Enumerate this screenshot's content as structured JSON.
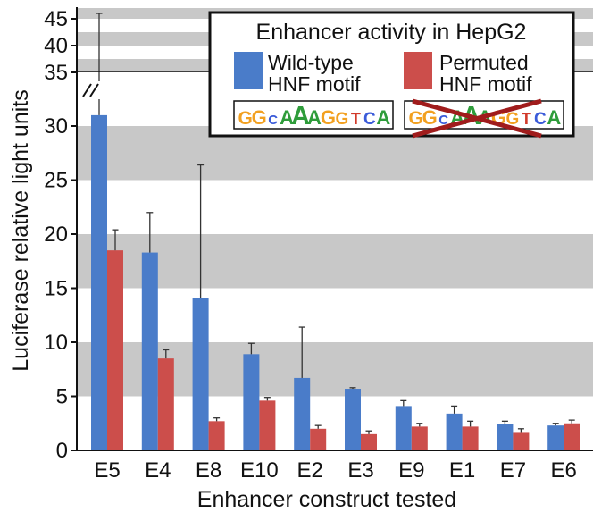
{
  "chart_data": {
    "type": "bar",
    "title": "",
    "xlabel": "Enhancer construct tested",
    "ylabel": "Luciferase relative light units",
    "categories": [
      "E5",
      "E4",
      "E8",
      "E10",
      "E2",
      "E3",
      "E9",
      "E1",
      "E7",
      "E6"
    ],
    "series": [
      {
        "name": "Wild-type HNF motif",
        "name_lines": [
          "Wild-type",
          "HNF motif"
        ],
        "color": "#4a7cc9",
        "values": [
          31.0,
          18.3,
          14.1,
          8.9,
          6.7,
          5.7,
          4.1,
          3.4,
          2.4,
          2.3
        ],
        "error": [
          15.0,
          3.7,
          12.3,
          1.0,
          4.7,
          0.1,
          0.5,
          0.7,
          0.3,
          0.2
        ]
      },
      {
        "name": "Permuted HNF motif",
        "name_lines": [
          "Permuted",
          "HNF motif"
        ],
        "color": "#cc4e4b",
        "values": [
          18.5,
          8.5,
          2.7,
          4.6,
          2.0,
          1.5,
          2.2,
          2.2,
          1.7,
          2.5
        ],
        "error": [
          1.9,
          0.8,
          0.3,
          0.3,
          0.3,
          0.3,
          0.3,
          0.5,
          0.3,
          0.3
        ]
      }
    ],
    "y_ticks_lower": [
      0,
      5,
      10,
      15,
      20,
      25,
      30
    ],
    "y_ticks_upper": [
      35,
      40,
      45
    ],
    "ylim": [
      0,
      47
    ],
    "axis_break": "between 30 and 35",
    "grid": "alternating gray bands",
    "legend": {
      "title": "Enhancer activity in HepG2",
      "placement": "top-right"
    },
    "motif_logo": {
      "letters": [
        "G",
        "G",
        "C",
        "A",
        "A",
        "A",
        "G",
        "G",
        "T",
        "C",
        "A"
      ],
      "colors": {
        "A": "#2e9c3a",
        "C": "#3b5bd9",
        "G": "#f2a020",
        "T": "#d23a2a"
      }
    },
    "colors": {
      "band": "#c8c8c8",
      "frame": "#111111",
      "cross": "#a01c1c"
    }
  }
}
